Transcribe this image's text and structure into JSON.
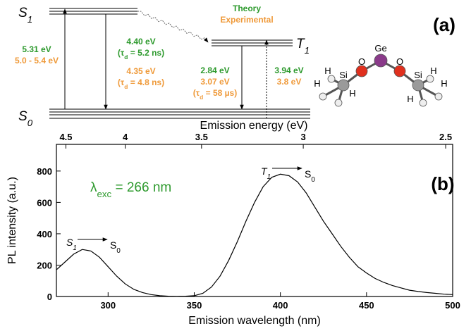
{
  "panel_a": {
    "label": "(a)",
    "legend": {
      "theory": "Theory",
      "experimental": "Experimental"
    },
    "levels": {
      "s1": {
        "name": "S",
        "sub": "1"
      },
      "t1": {
        "name": "T",
        "sub": "1"
      },
      "s0": {
        "name": "S",
        "sub": "0"
      }
    },
    "absorption": {
      "theory": "5.31 eV",
      "experimental": "5.0 - 5.4 eV"
    },
    "s1_emission": {
      "theory": "4.40 eV",
      "theory_tau": {
        "pre": "(τ",
        "sub": "d",
        "post": " = 5.2 ns)"
      },
      "experimental": "4.35 eV",
      "experimental_tau": {
        "pre": "(τ",
        "sub": "d",
        "post": " = 4.8 ns)"
      }
    },
    "t1_emission": {
      "theory": "2.84 eV",
      "experimental": "3.07 eV",
      "experimental_tau": {
        "pre": "(τ",
        "sub": "d",
        "post": " = 58 µs)"
      }
    },
    "t1_absorption": {
      "theory": "3.94 eV",
      "experimental": "3.8 eV"
    },
    "molecule": {
      "atoms": [
        {
          "label": "Ge"
        },
        {
          "label": "O"
        },
        {
          "label": "O"
        },
        {
          "label": "Si"
        },
        {
          "label": "Si"
        },
        {
          "label": "H"
        },
        {
          "label": "H"
        },
        {
          "label": "H"
        },
        {
          "label": "H"
        },
        {
          "label": "H"
        },
        {
          "label": "H"
        }
      ]
    }
  },
  "chart_data": {
    "type": "line",
    "panel_label": "(b)",
    "xlabel": "Emission wavelength (nm)",
    "ylabel": "PL intensity (a.u.)",
    "x2label": "Emission energy (eV)",
    "xlim": [
      270,
      500
    ],
    "ylim": [
      0,
      970
    ],
    "xticks": [
      300,
      350,
      400,
      450,
      500
    ],
    "yticks": [
      0,
      200,
      400,
      600,
      800
    ],
    "x2ticks": [
      4.5,
      4,
      3.5,
      3,
      2.5
    ],
    "color": "#000000",
    "annotation": {
      "pre": "λ",
      "sub": "exc",
      "post": " = 266 nm"
    },
    "annotation_color": "#2e9a2e",
    "transitions": [
      {
        "from": "S",
        "from_sub": "1",
        "to": "S",
        "to_sub": "0"
      },
      {
        "from": "T",
        "from_sub": "1",
        "to": "S",
        "to_sub": "0"
      }
    ],
    "x": [
      270,
      275,
      280,
      285,
      290,
      295,
      300,
      305,
      310,
      315,
      320,
      325,
      330,
      335,
      340,
      345,
      350,
      355,
      360,
      365,
      370,
      375,
      380,
      385,
      390,
      395,
      400,
      405,
      410,
      415,
      420,
      425,
      430,
      435,
      440,
      445,
      450,
      455,
      460,
      465,
      470,
      475,
      480,
      485,
      490,
      495,
      500
    ],
    "values": [
      170,
      220,
      270,
      300,
      290,
      250,
      190,
      130,
      80,
      45,
      25,
      12,
      5,
      2,
      1,
      2,
      5,
      20,
      60,
      130,
      230,
      350,
      480,
      600,
      700,
      760,
      780,
      770,
      730,
      660,
      570,
      480,
      400,
      320,
      250,
      190,
      150,
      115,
      90,
      70,
      55,
      40,
      32,
      25,
      20,
      15,
      12
    ]
  }
}
